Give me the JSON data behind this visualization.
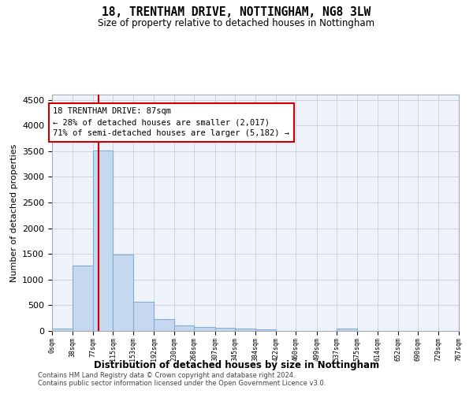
{
  "title1": "18, TRENTHAM DRIVE, NOTTINGHAM, NG8 3LW",
  "title2": "Size of property relative to detached houses in Nottingham",
  "xlabel": "Distribution of detached houses by size in Nottingham",
  "ylabel": "Number of detached properties",
  "bin_edges": [
    0,
    38,
    77,
    115,
    153,
    192,
    230,
    268,
    307,
    345,
    384,
    422,
    460,
    499,
    537,
    575,
    614,
    652,
    690,
    729,
    767
  ],
  "bar_heights": [
    40,
    1270,
    3510,
    1480,
    575,
    235,
    115,
    80,
    55,
    40,
    30,
    0,
    0,
    0,
    50,
    0,
    0,
    0,
    0,
    0
  ],
  "bar_color": "#c5d8f0",
  "bar_edge_color": "#7fafd4",
  "bar_linewidth": 0.8,
  "grid_color": "#c8cfd8",
  "property_sqm": 87,
  "property_line_color": "#cc0000",
  "annotation_line1": "18 TRENTHAM DRIVE: 87sqm",
  "annotation_line2": "← 28% of detached houses are smaller (2,017)",
  "annotation_line3": "71% of semi-detached houses are larger (5,182) →",
  "annotation_box_color": "#ffffff",
  "annotation_box_edge_color": "#cc0000",
  "ylim": [
    0,
    4600
  ],
  "yticks": [
    0,
    500,
    1000,
    1500,
    2000,
    2500,
    3000,
    3500,
    4000,
    4500
  ],
  "footer1": "Contains HM Land Registry data © Crown copyright and database right 2024.",
  "footer2": "Contains public sector information licensed under the Open Government Licence v3.0.",
  "background_color": "#ffffff",
  "plot_bg_color": "#eef2fb"
}
